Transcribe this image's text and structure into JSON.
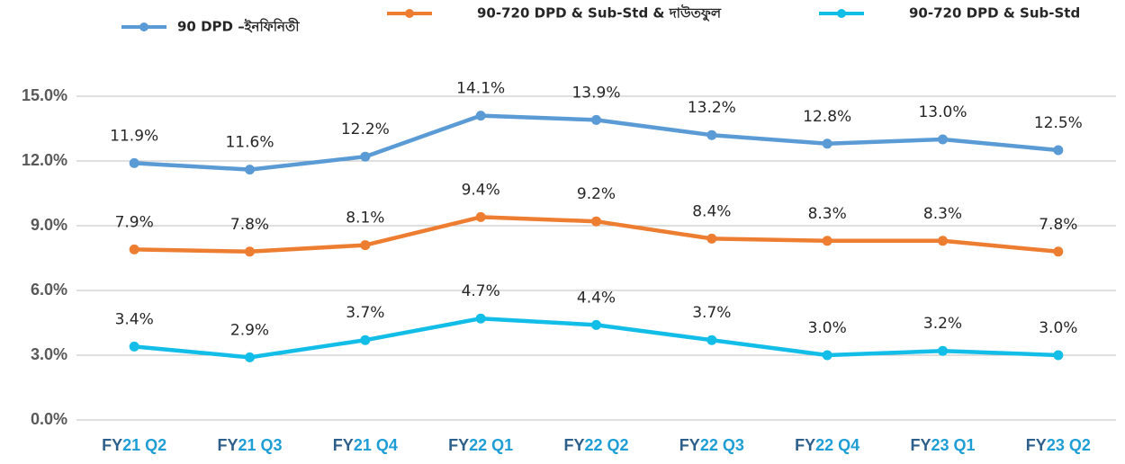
{
  "chart_data": {
    "type": "line",
    "categories": [
      "FY21 Q2",
      "FY21 Q3",
      "FY21 Q4",
      "FY22 Q1",
      "FY22 Q2",
      "FY22 Q3",
      "FY22 Q4",
      "FY23 Q1",
      "FY23 Q2"
    ],
    "series": [
      {
        "name": "90 DPD –ইনফিনিতী",
        "color": "#5b9bd5",
        "values": [
          11.9,
          11.6,
          12.2,
          14.1,
          13.9,
          13.2,
          12.8,
          13.0,
          12.5
        ],
        "value_labels": [
          "11.9%",
          "11.6%",
          "12.2%",
          "14.1%",
          "13.9%",
          "13.2%",
          "12.8%",
          "13.0%",
          "12.5%"
        ]
      },
      {
        "name": "90-720 DPD & Sub-Std & দাউতফুল",
        "color": "#ed7d31",
        "values": [
          7.9,
          7.8,
          8.1,
          9.4,
          9.2,
          8.4,
          8.3,
          8.3,
          7.8
        ],
        "value_labels": [
          "7.9%",
          "7.8%",
          "8.1%",
          "9.4%",
          "9.2%",
          "8.4%",
          "8.3%",
          "8.3%",
          "7.8%"
        ]
      },
      {
        "name": "90-720 DPD & Sub-Std",
        "color": "#12bde8",
        "values": [
          3.4,
          2.9,
          3.7,
          4.7,
          4.4,
          3.7,
          3.0,
          3.2,
          3.0
        ],
        "value_labels": [
          "3.4%",
          "2.9%",
          "3.7%",
          "4.7%",
          "4.4%",
          "3.7%",
          "3.0%",
          "3.2%",
          "3.0%"
        ]
      }
    ],
    "ylim": [
      0,
      15
    ],
    "yticks": [
      {
        "value": 0,
        "label": "0.0%"
      },
      {
        "value": 3,
        "label": "3.0%"
      },
      {
        "value": 6,
        "label": "6.0%"
      },
      {
        "value": 9,
        "label": "9.0%"
      },
      {
        "value": 12,
        "label": "12.0%"
      },
      {
        "value": 15,
        "label": "15.0%"
      }
    ],
    "grid": true
  }
}
